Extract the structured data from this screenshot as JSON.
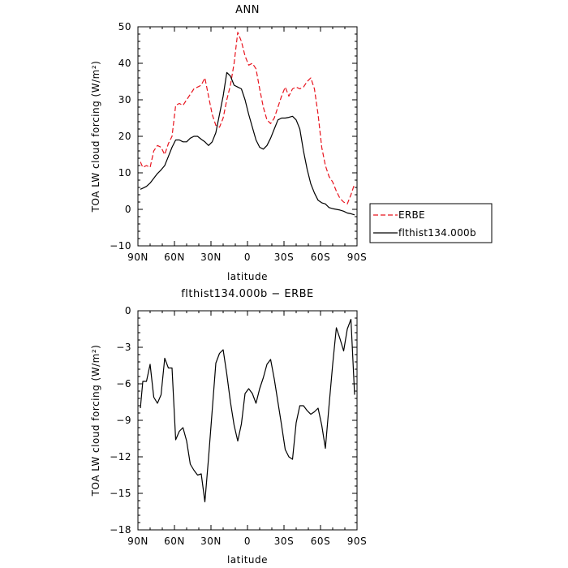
{
  "chart_data": [
    {
      "type": "line",
      "title": "ANN",
      "xlabel": "latitude",
      "ylabel": "TOA LW cloud forcing (W/m²)",
      "xlim": [
        90,
        -90
      ],
      "ylim": [
        -10,
        50
      ],
      "xticks": [
        {
          "value": 90,
          "label": "90N"
        },
        {
          "value": 60,
          "label": "60N"
        },
        {
          "value": 30,
          "label": "30N"
        },
        {
          "value": 0,
          "label": "0"
        },
        {
          "value": -30,
          "label": "30S"
        },
        {
          "value": -60,
          "label": "60S"
        },
        {
          "value": -90,
          "label": "90S"
        }
      ],
      "yticks": [
        -10,
        0,
        10,
        20,
        30,
        40,
        50
      ],
      "legend_position": "right",
      "grid": false,
      "series": [
        {
          "name": "ERBE",
          "color": "#e8141e",
          "dash": "dashed",
          "x": [
            88,
            86,
            83,
            80,
            77,
            74,
            71,
            68,
            65,
            62,
            59,
            56,
            53,
            50,
            47,
            44,
            41,
            38,
            35,
            32,
            29,
            26,
            23,
            20,
            17,
            14,
            11,
            8,
            5,
            2,
            -1,
            -4,
            -7,
            -10,
            -13,
            -16,
            -19,
            -22,
            -25,
            -28,
            -31,
            -34,
            -37,
            -40,
            -43,
            -46,
            -49,
            -52,
            -55,
            -58,
            -61,
            -64,
            -67,
            -70,
            -73,
            -76,
            -79,
            -82,
            -85,
            -88
          ],
          "values": [
            13,
            11.5,
            12,
            11.5,
            16,
            17.5,
            17,
            15,
            18,
            20,
            28.5,
            29,
            28.5,
            30,
            31.5,
            33,
            33.5,
            34,
            36,
            31,
            26,
            23,
            22.5,
            25,
            30,
            34,
            40,
            48.5,
            46,
            42,
            39.5,
            40,
            38.5,
            33,
            28,
            24.5,
            23.5,
            25,
            28,
            31,
            33.5,
            31,
            33,
            33.5,
            33,
            33.5,
            35,
            36,
            33,
            26,
            17,
            12,
            9,
            7.5,
            5,
            3,
            2,
            1.5,
            4,
            7
          ]
        },
        {
          "name": "flthist134.000b",
          "color": "#000000",
          "dash": "solid",
          "x": [
            88,
            86,
            83,
            80,
            77,
            74,
            71,
            68,
            65,
            62,
            59,
            56,
            53,
            50,
            47,
            44,
            41,
            38,
            35,
            32,
            29,
            26,
            23,
            20,
            17,
            14,
            11,
            8,
            5,
            2,
            -1,
            -4,
            -7,
            -10,
            -13,
            -16,
            -19,
            -22,
            -25,
            -28,
            -31,
            -34,
            -37,
            -40,
            -43,
            -46,
            -49,
            -52,
            -55,
            -58,
            -61,
            -64,
            -67,
            -70,
            -73,
            -76,
            -79,
            -82,
            -85,
            -88
          ],
          "values": [
            5.5,
            5.8,
            6.3,
            7.2,
            8.5,
            9.8,
            10.8,
            12,
            14.5,
            17,
            19,
            19,
            18.5,
            18.5,
            19.5,
            20,
            20,
            19.2,
            18.5,
            17.5,
            18.5,
            21,
            26,
            31,
            37.5,
            36.5,
            34,
            33.5,
            33,
            30,
            26,
            22.5,
            19,
            17,
            16.5,
            17.5,
            19.5,
            22,
            24.5,
            25,
            25,
            25.2,
            25.5,
            24.5,
            22,
            16,
            11,
            7,
            4.5,
            2.5,
            1.8,
            1.5,
            0.5,
            0.2,
            0,
            -0.2,
            -0.5,
            -1,
            -1.2,
            -1.5
          ]
        }
      ]
    },
    {
      "type": "line",
      "title": "flthist134.000b − ERBE",
      "xlabel": "latitude",
      "ylabel": "TOA LW cloud forcing (W/m²)",
      "xlim": [
        90,
        -90
      ],
      "ylim": [
        -18,
        0
      ],
      "xticks": [
        {
          "value": 90,
          "label": "90N"
        },
        {
          "value": 60,
          "label": "60N"
        },
        {
          "value": 30,
          "label": "30N"
        },
        {
          "value": 0,
          "label": "0"
        },
        {
          "value": -30,
          "label": "30S"
        },
        {
          "value": -60,
          "label": "60S"
        },
        {
          "value": -90,
          "label": "90S"
        }
      ],
      "yticks": [
        0,
        -3,
        -6,
        -9,
        -12,
        -15,
        -18
      ],
      "grid": false,
      "series": [
        {
          "color": "#000000",
          "dash": "solid",
          "x": [
            88,
            86,
            83,
            80,
            77,
            74,
            71,
            68,
            65,
            62,
            59,
            56,
            53,
            50,
            47,
            44,
            41,
            38,
            35,
            32,
            29,
            26,
            23,
            20,
            17,
            14,
            11,
            8,
            5,
            2,
            -1,
            -4,
            -7,
            -10,
            -13,
            -16,
            -19,
            -22,
            -25,
            -28,
            -31,
            -34,
            -37,
            -40,
            -43,
            -46,
            -49,
            -52,
            -55,
            -58,
            -61,
            -64,
            -67,
            -70,
            -73,
            -76,
            -79,
            -82,
            -85,
            -88
          ],
          "values": [
            -8,
            -5.8,
            -5.8,
            -4.4,
            -7.1,
            -7.6,
            -6.9,
            -3.9,
            -4.7,
            -4.7,
            -10.6,
            -9.9,
            -9.6,
            -10.7,
            -12.6,
            -13.1,
            -13.5,
            -13.4,
            -15.7,
            -12.1,
            -8.2,
            -4.3,
            -3.5,
            -3.2,
            -5.2,
            -7.5,
            -9.4,
            -10.7,
            -9.3,
            -6.8,
            -6.4,
            -6.8,
            -7.6,
            -6.4,
            -5.5,
            -4.4,
            -4,
            -5.6,
            -7.5,
            -9.4,
            -11.4,
            -12,
            -12.2,
            -9.2,
            -7.8,
            -7.8,
            -8.2,
            -8.5,
            -8.3,
            -8,
            -9.4,
            -11.3,
            -7.8,
            -4.4,
            -1.4,
            -2.3,
            -3.3,
            -1.5,
            -0.7,
            -6.9
          ]
        }
      ]
    }
  ]
}
